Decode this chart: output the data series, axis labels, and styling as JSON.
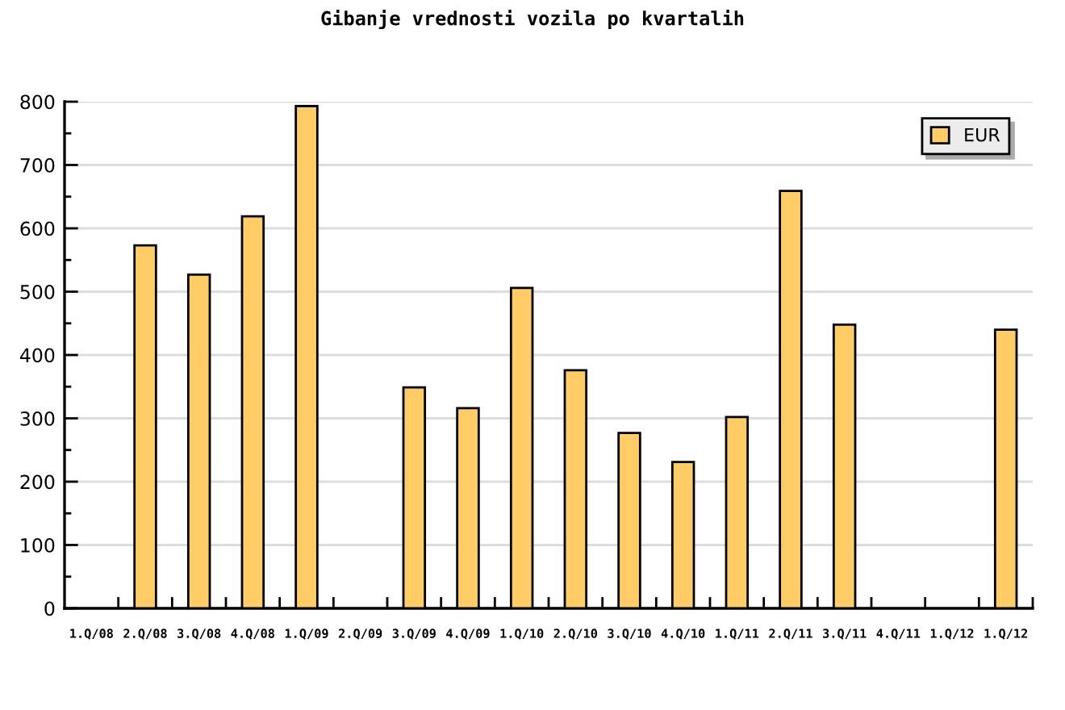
{
  "chart_data": {
    "type": "bar",
    "title": "Gibanje vrednosti vozila po kvartalih",
    "categories": [
      "1.Q/08",
      "2.Q/08",
      "3.Q/08",
      "4.Q/08",
      "1.Q/09",
      "2.Q/09",
      "3.Q/09",
      "4.Q/09",
      "1.Q/10",
      "2.Q/10",
      "3.Q/10",
      "4.Q/10",
      "1.Q/11",
      "2.Q/11",
      "3.Q/11",
      "4.Q/11",
      "1.Q/12",
      "1.Q/12"
    ],
    "series": [
      {
        "name": "EUR",
        "color": "#ffcc66",
        "values": [
          null,
          573,
          527,
          619,
          793,
          null,
          349,
          316,
          506,
          376,
          277,
          231,
          302,
          659,
          448,
          null,
          null,
          440
        ]
      }
    ],
    "ylim": [
      0,
      800
    ],
    "yticks": [
      0,
      100,
      200,
      300,
      400,
      500,
      600,
      700,
      800
    ],
    "grid": "y",
    "legend": "top right"
  }
}
